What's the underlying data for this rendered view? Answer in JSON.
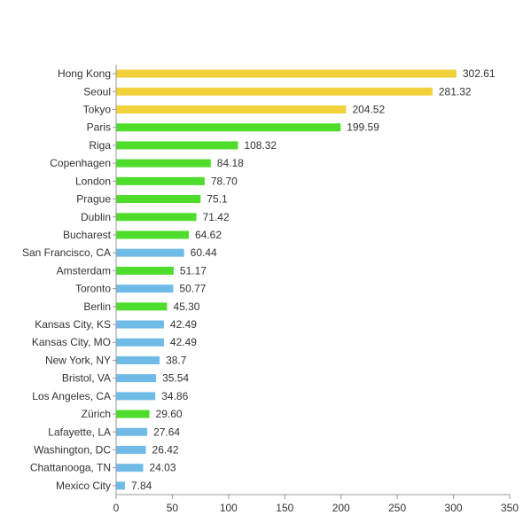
{
  "chart_data": {
    "type": "bar",
    "orientation": "horizontal",
    "title": "",
    "xlabel": "",
    "ylabel": "",
    "categories": [
      "Hong Kong",
      "Seoul",
      "Tokyo",
      "Paris",
      "Riga",
      "Copenhagen",
      "London",
      "Prague",
      "Dublin",
      "Bucharest",
      "San Francisco, CA",
      "Amsterdam",
      "Toronto",
      "Berlin",
      "Kansas City, KS",
      "Kansas City, MO",
      "New York, NY",
      "Bristol, VA",
      "Los Angeles, CA",
      "Zürich",
      "Lafayette, LA",
      "Washington, DC",
      "Chattanooga, TN",
      "Mexico City"
    ],
    "values": [
      302.61,
      281.32,
      204.52,
      199.59,
      108.32,
      84.18,
      78.7,
      75.1,
      71.42,
      64.62,
      60.44,
      51.17,
      50.77,
      45.3,
      42.49,
      42.49,
      38.7,
      35.54,
      34.86,
      29.6,
      27.64,
      26.42,
      24.03,
      7.84
    ],
    "value_labels": [
      "302.61",
      "281.32",
      "204.52",
      "199.59",
      "108.32",
      "84.18",
      "78.70",
      "75.1",
      "71.42",
      "64.62",
      "60.44",
      "51.17",
      "50.77",
      "45.30",
      "42.49",
      "42.49",
      "38.7",
      "35.54",
      "34.86",
      "29.60",
      "27.64",
      "26.42",
      "24.03",
      "7.84"
    ],
    "bar_colors": [
      "#f2d23b",
      "#f2d23b",
      "#f2d23b",
      "#4ddd2a",
      "#4ddd2a",
      "#4ddd2a",
      "#4ddd2a",
      "#4ddd2a",
      "#4ddd2a",
      "#4ddd2a",
      "#6fbbe8",
      "#4ddd2a",
      "#6fbbe8",
      "#4ddd2a",
      "#6fbbe8",
      "#6fbbe8",
      "#6fbbe8",
      "#6fbbe8",
      "#6fbbe8",
      "#4ddd2a",
      "#6fbbe8",
      "#6fbbe8",
      "#6fbbe8",
      "#6fbbe8"
    ],
    "xlim": [
      0,
      350
    ],
    "xticks": [
      0,
      50,
      100,
      150,
      200,
      250,
      300,
      350
    ],
    "grid": false,
    "legend": "none"
  }
}
